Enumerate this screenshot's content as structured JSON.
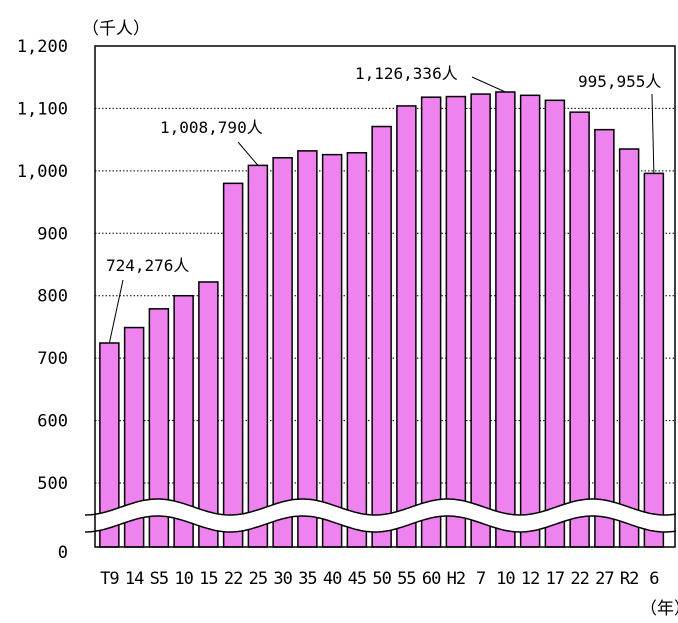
{
  "chart_data": {
    "type": "bar",
    "y_unit": "（千人）",
    "x_unit": "（年）",
    "categories": [
      "T9",
      "14",
      "S5",
      "10",
      "15",
      "22",
      "25",
      "30",
      "35",
      "40",
      "45",
      "50",
      "55",
      "60",
      "H2",
      "7",
      "10",
      "12",
      "17",
      "22",
      "27",
      "R2",
      "6"
    ],
    "values": [
      724.276,
      749,
      779,
      800,
      822,
      980,
      1008.79,
      1021,
      1032,
      1026,
      1029,
      1071,
      1104,
      1118,
      1119,
      1123,
      1126.336,
      1121,
      1113,
      1094,
      1066,
      1035,
      995.955
    ],
    "y_ticks": [
      "1,200",
      "1,100",
      "1,000",
      "900",
      "800",
      "700",
      "600",
      "500",
      "0"
    ],
    "y_axis_break": {
      "between": [
        0,
        500
      ],
      "style": "wavy"
    },
    "ylim": [
      450,
      1200
    ],
    "grid": "dotted-horizontal",
    "bar_color": "#ee82ee",
    "annotations": [
      {
        "text": "724,276人",
        "category_index": 0
      },
      {
        "text": "1,008,790人",
        "category_index": 6
      },
      {
        "text": "1,126,336人",
        "category_index": 16
      },
      {
        "text": "995,955人",
        "category_index": 22
      }
    ]
  }
}
